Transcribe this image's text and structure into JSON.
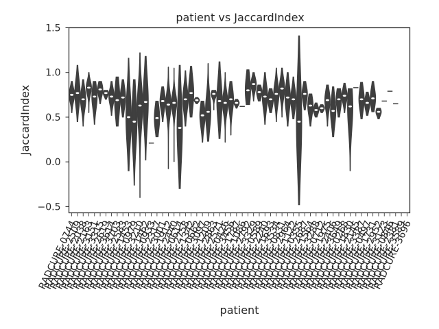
{
  "chart_data": {
    "type": "violin",
    "title": "patient vs JaccardIndex",
    "xlabel": "patient",
    "ylabel": "JaccardIndex",
    "ylim": [
      -0.57,
      1.5
    ],
    "yticks": [
      -0.5,
      0.0,
      0.5,
      1.0,
      1.5
    ],
    "ytick_labels": [
      "−0.5",
      "0.0",
      "0.5",
      "1.0",
      "1.5"
    ],
    "grid": false,
    "legend": "none",
    "colors": {
      "violin": "#3f3f3f",
      "background": "#ffffff",
      "axes": "#262626"
    },
    "categories": [
      "RADCURE-0744",
      "RADCURE-2509",
      "RADCURE-2038",
      "RADCURE-2163",
      "RADCURE-3151",
      "RADCURE-3315",
      "RADCURE-2619",
      "RADCURE-3614",
      "RADCURE-3703",
      "RADCURE-2583",
      "RADCURE-1453",
      "RADCURE-0979",
      "RADCURE-3210",
      "RADCURE-1462",
      "RADCURE-0933",
      "RADCURE-2317",
      "RADCURE-3001",
      "RADCURE-1912",
      "RADCURE-2440",
      "RADCURE-0614",
      "RADCURE-2758",
      "RADCURE-1342",
      "RADCURE-0662",
      "RADCURE-3097",
      "RADCURE-1209",
      "RADCURE-2863",
      "RADCURE-2571",
      "RADCURE-0426",
      "RADCURE-3456",
      "RADCURE-1787",
      "RADCURE-1086",
      "RADCURE-2792",
      "RADCURE-3329",
      "RADCURE-0589",
      "RADCURE-2240",
      "RADCURE-1693",
      "RADCURE-3534",
      "RADCURE-0831",
      "RADCURE-2964",
      "RADCURE-1122",
      "RADCURE-0355",
      "RADCURE-2687",
      "RADCURE-1564",
      "RADCURE-3288",
      "RADCURE-0712",
      "RADCURE-1975",
      "RADCURE-2406",
      "RADCURE-3649",
      "RADCURE-0268",
      "RADCURE-1830",
      "RADCURE-2145",
      "RADCURE-3387",
      "RADCURE-0497",
      "RADCURE-1731",
      "RADCURE-2952",
      "RADCURE-3123",
      "RADCURE-0846",
      "RADCURE-2381",
      "RADCURE-3589",
      "RADCURE-3696"
    ],
    "series": [
      {
        "values": [
          [
            0.55,
            0.68,
            0.75,
            0.79,
            0.9
          ],
          [
            0.45,
            0.68,
            0.77,
            0.88,
            1.08
          ],
          [
            0.4,
            0.63,
            0.7,
            0.79,
            0.92
          ],
          [
            0.55,
            0.77,
            0.83,
            0.87,
            1.0
          ],
          [
            0.42,
            0.62,
            0.73,
            0.8,
            0.9
          ],
          [
            0.65,
            0.75,
            0.81,
            0.85,
            0.9
          ],
          [
            0.7,
            0.74,
            0.77,
            0.79,
            0.8
          ],
          [
            0.52,
            0.67,
            0.73,
            0.79,
            0.9
          ],
          [
            0.4,
            0.58,
            0.69,
            0.84,
            0.95
          ],
          [
            0.5,
            0.64,
            0.72,
            0.8,
            0.92
          ],
          [
            -0.1,
            0.25,
            0.5,
            0.65,
            1.16
          ],
          [
            -0.26,
            0.2,
            0.45,
            0.6,
            0.92
          ],
          [
            -0.4,
            0.45,
            0.63,
            0.77,
            1.22
          ],
          [
            0.02,
            0.45,
            0.67,
            0.82,
            1.18
          ],
          [
            0.21,
            0.21,
            0.21,
            0.21,
            0.21
          ],
          [
            0.28,
            0.38,
            0.49,
            0.58,
            0.68
          ],
          [
            0.45,
            0.6,
            0.68,
            0.74,
            0.84
          ],
          [
            -0.08,
            0.56,
            0.64,
            0.74,
            1.06
          ],
          [
            0.0,
            0.58,
            0.66,
            0.72,
            1.05
          ],
          [
            -0.3,
            0.12,
            0.38,
            0.62,
            1.08
          ],
          [
            0.4,
            0.6,
            0.7,
            0.79,
            1.02
          ],
          [
            0.5,
            0.62,
            0.77,
            0.85,
            1.07
          ],
          [
            0.65,
            0.67,
            0.69,
            0.7,
            0.72
          ],
          [
            0.22,
            0.43,
            0.52,
            0.61,
            0.68
          ],
          [
            0.23,
            0.48,
            0.56,
            0.73,
            1.1
          ],
          [
            0.58,
            0.72,
            0.76,
            0.78,
            0.8
          ],
          [
            0.26,
            0.55,
            0.68,
            0.85,
            1.12
          ],
          [
            0.22,
            0.56,
            0.66,
            0.72,
            1.0
          ],
          [
            0.3,
            0.6,
            0.7,
            0.78,
            0.9
          ],
          [
            0.6,
            0.63,
            0.66,
            0.67,
            0.7
          ],
          [
            0.62,
            0.62,
            0.62,
            0.62,
            0.62
          ],
          [
            0.64,
            0.71,
            0.8,
            0.93,
            1.03
          ],
          [
            0.68,
            0.82,
            0.87,
            0.92,
            1.0
          ],
          [
            0.68,
            0.73,
            0.78,
            0.82,
            0.86
          ],
          [
            0.42,
            0.63,
            0.73,
            0.81,
            1.0
          ],
          [
            0.55,
            0.65,
            0.7,
            0.78,
            0.82
          ],
          [
            0.45,
            0.68,
            0.76,
            0.84,
            1.05
          ],
          [
            0.5,
            0.75,
            0.82,
            0.9,
            1.05
          ],
          [
            0.4,
            0.62,
            0.72,
            0.82,
            1.0
          ],
          [
            0.48,
            0.62,
            0.7,
            0.78,
            0.95
          ],
          [
            -0.48,
            0.12,
            0.45,
            0.78,
            1.41
          ],
          [
            0.58,
            0.68,
            0.76,
            0.81,
            0.9
          ],
          [
            0.4,
            0.55,
            0.63,
            0.7,
            0.76
          ],
          [
            0.5,
            0.55,
            0.58,
            0.62,
            0.66
          ],
          [
            0.55,
            0.58,
            0.6,
            0.62,
            0.64
          ],
          [
            0.4,
            0.6,
            0.69,
            0.75,
            0.86
          ],
          [
            0.28,
            0.45,
            0.57,
            0.66,
            0.84
          ],
          [
            0.5,
            0.62,
            0.7,
            0.78,
            0.82
          ],
          [
            0.55,
            0.66,
            0.74,
            0.77,
            0.88
          ],
          [
            -0.1,
            0.4,
            0.62,
            0.74,
            0.82
          ],
          [
            0.83,
            0.83,
            0.83,
            0.83,
            0.83
          ],
          [
            0.48,
            0.63,
            0.7,
            0.8,
            0.89
          ],
          [
            0.52,
            0.6,
            0.66,
            0.71,
            0.78
          ],
          [
            0.56,
            0.65,
            0.71,
            0.8,
            0.9
          ],
          [
            0.48,
            0.52,
            0.56,
            0.58,
            0.6
          ],
          [
            0.68,
            0.68,
            0.68,
            0.68,
            0.68
          ],
          [
            0.79,
            0.79,
            0.79,
            0.79,
            0.79
          ],
          [
            0.65,
            0.65,
            0.65,
            0.65,
            0.65
          ]
        ],
        "value_format": "[min, q1, median, q3, max] per category (first 58 shown; last two are flat lines)"
      }
    ]
  }
}
